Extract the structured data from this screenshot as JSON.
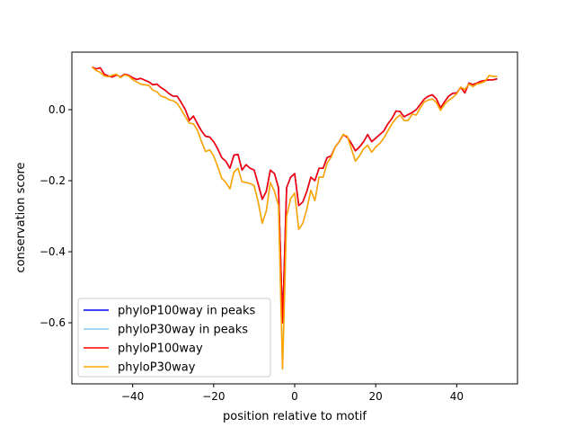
{
  "chart_data": {
    "type": "line",
    "title": "",
    "xlabel": "position relative to motif",
    "ylabel": "conservation score",
    "xlim": [
      -55,
      55
    ],
    "ylim": [
      -0.772,
      0.162
    ],
    "xticks": [
      -40,
      -20,
      0,
      20,
      40
    ],
    "xtick_labels": [
      "−40",
      "−20",
      "0",
      "20",
      "40"
    ],
    "yticks": [
      -0.6,
      -0.4,
      -0.2,
      0.0
    ],
    "ytick_labels": [
      "−0.6",
      "−0.4",
      "−0.2",
      "0.0"
    ],
    "grid": false,
    "legend_position": "lower-left",
    "x": [
      -50,
      -49,
      -48,
      -47,
      -46,
      -45,
      -44,
      -43,
      -42,
      -41,
      -40,
      -39,
      -38,
      -37,
      -36,
      -35,
      -34,
      -33,
      -32,
      -31,
      -30,
      -29,
      -28,
      -27,
      -26,
      -25,
      -24,
      -23,
      -22,
      -21,
      -20,
      -19,
      -18,
      -17,
      -16,
      -15,
      -14,
      -13,
      -12,
      -11,
      -10,
      -9,
      -8,
      -7,
      -6,
      -5,
      -4,
      -3,
      -2,
      -1,
      0,
      1,
      2,
      3,
      4,
      5,
      6,
      7,
      8,
      9,
      10,
      11,
      12,
      13,
      14,
      15,
      16,
      17,
      18,
      19,
      20,
      21,
      22,
      23,
      24,
      25,
      26,
      27,
      28,
      29,
      30,
      31,
      32,
      33,
      34,
      35,
      36,
      37,
      38,
      39,
      40,
      41,
      42,
      43,
      44,
      45,
      46,
      47,
      48,
      49,
      50
    ],
    "series": [
      {
        "name": "phyloP100way in peaks",
        "color": "#0000ff",
        "ref": "phyloP100way"
      },
      {
        "name": "phyloP30way in peaks",
        "color": "#87ceeb",
        "ref": "phyloP30way"
      },
      {
        "name": "phyloP100way",
        "color": "#ff0000",
        "values": [
          0.12,
          0.115,
          0.118,
          0.1,
          0.095,
          0.092,
          0.098,
          0.092,
          0.1,
          0.097,
          0.09,
          0.085,
          0.088,
          0.083,
          0.078,
          0.07,
          0.072,
          0.062,
          0.055,
          0.045,
          0.038,
          0.038,
          0.02,
          0.0,
          -0.03,
          -0.018,
          -0.04,
          -0.06,
          -0.075,
          -0.077,
          -0.09,
          -0.11,
          -0.135,
          -0.145,
          -0.165,
          -0.128,
          -0.126,
          -0.17,
          -0.155,
          -0.165,
          -0.17,
          -0.21,
          -0.252,
          -0.23,
          -0.17,
          -0.18,
          -0.22,
          -0.6,
          -0.22,
          -0.19,
          -0.18,
          -0.27,
          -0.26,
          -0.23,
          -0.19,
          -0.2,
          -0.165,
          -0.165,
          -0.135,
          -0.13,
          -0.105,
          -0.09,
          -0.07,
          -0.078,
          -0.095,
          -0.116,
          -0.105,
          -0.09,
          -0.07,
          -0.09,
          -0.08,
          -0.07,
          -0.06,
          -0.04,
          -0.025,
          -0.004,
          -0.005,
          -0.02,
          -0.014,
          -0.008,
          0.0,
          0.015,
          0.03,
          0.038,
          0.042,
          0.03,
          0.005,
          0.022,
          0.038,
          0.046,
          0.047,
          0.063,
          0.047,
          0.075,
          0.071,
          0.075,
          0.08,
          0.082,
          0.084,
          0.084,
          0.087
        ]
      },
      {
        "name": "phyloP30way",
        "color": "#ffa500",
        "values": [
          0.12,
          0.11,
          0.105,
          0.095,
          0.093,
          0.097,
          0.1,
          0.09,
          0.098,
          0.095,
          0.085,
          0.078,
          0.072,
          0.07,
          0.068,
          0.055,
          0.05,
          0.038,
          0.035,
          0.028,
          0.025,
          0.018,
          0.0,
          -0.02,
          -0.038,
          -0.04,
          -0.058,
          -0.09,
          -0.118,
          -0.113,
          -0.13,
          -0.16,
          -0.193,
          -0.205,
          -0.223,
          -0.176,
          -0.165,
          -0.203,
          -0.205,
          -0.208,
          -0.214,
          -0.26,
          -0.32,
          -0.285,
          -0.205,
          -0.23,
          -0.27,
          -0.73,
          -0.3,
          -0.25,
          -0.235,
          -0.337,
          -0.32,
          -0.28,
          -0.227,
          -0.256,
          -0.19,
          -0.19,
          -0.15,
          -0.134,
          -0.105,
          -0.09,
          -0.07,
          -0.075,
          -0.11,
          -0.145,
          -0.13,
          -0.11,
          -0.1,
          -0.12,
          -0.105,
          -0.095,
          -0.08,
          -0.06,
          -0.04,
          -0.025,
          -0.015,
          -0.03,
          -0.03,
          -0.013,
          -0.015,
          0.005,
          0.022,
          0.027,
          0.03,
          0.02,
          -0.002,
          0.015,
          0.026,
          0.034,
          0.045,
          0.063,
          0.057,
          0.072,
          0.065,
          0.073,
          0.075,
          0.08,
          0.096,
          0.094,
          0.094
        ]
      }
    ]
  }
}
